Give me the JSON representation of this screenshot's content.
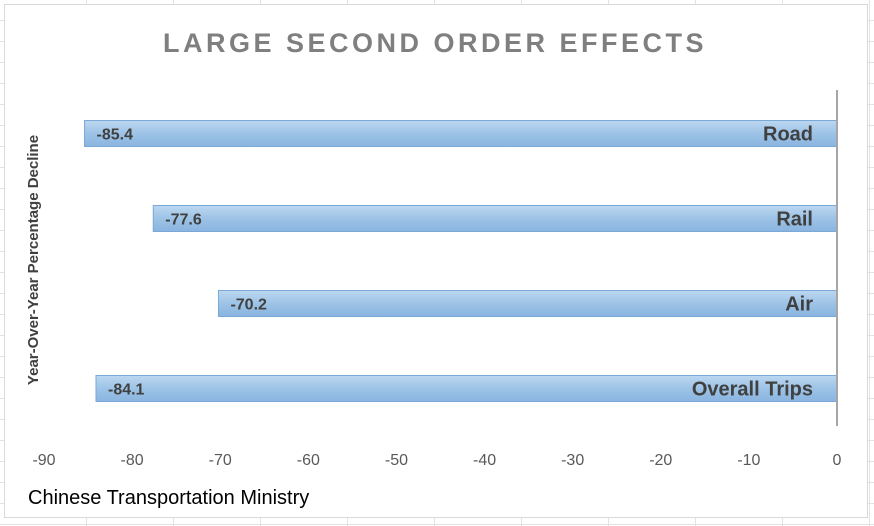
{
  "chart_data": {
    "type": "bar",
    "orientation": "horizontal",
    "title": "LARGE SECOND ORDER EFFECTS",
    "ylabel": "Year-Over-Year Percentage Decline",
    "xlabel": "",
    "categories": [
      "Road",
      "Rail",
      "Air",
      "Overall Trips"
    ],
    "values": [
      -85.4,
      -77.6,
      -70.2,
      -84.1
    ],
    "data_labels": [
      "-85.4",
      "-77.6",
      "-70.2",
      "-84.1"
    ],
    "xlim": [
      -90,
      0
    ],
    "x_ticks": [
      "-90",
      "-80",
      "-70",
      "-60",
      "-50",
      "-40",
      "-30",
      "-20",
      "-10",
      "0"
    ],
    "gridlines": false,
    "legend": "none",
    "bar_color": "#9dc3e6",
    "bar_edge_color": "#7aa9d8",
    "source": "Chinese Transportation Ministry"
  }
}
